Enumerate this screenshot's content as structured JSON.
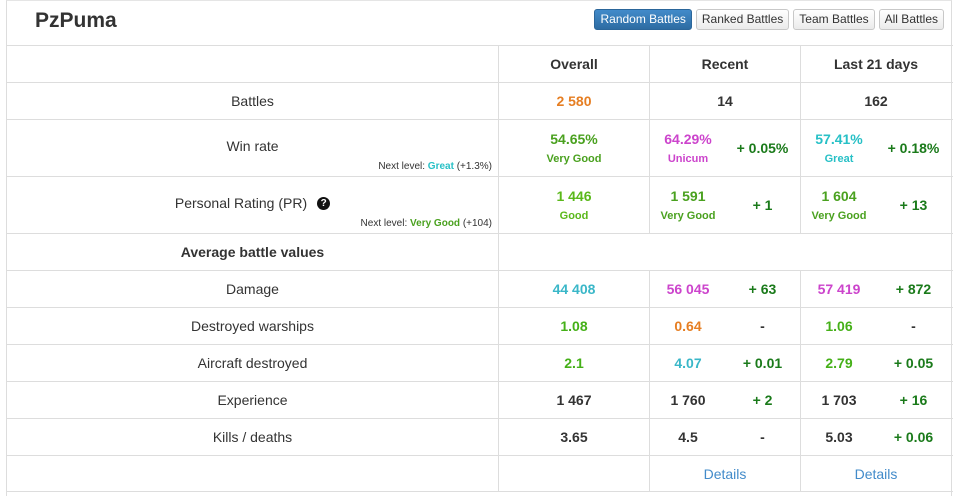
{
  "player": {
    "name": "PzPuma"
  },
  "modes": [
    "Random Battles",
    "Ranked Battles",
    "Team Battles",
    "All Battles"
  ],
  "columns": {
    "overall": "Overall",
    "recent": "Recent",
    "last21": "Last 21 days"
  },
  "battles": {
    "label": "Battles",
    "overall": "2 580",
    "recent": "14",
    "last21": "162"
  },
  "winrate": {
    "label": "Win rate",
    "next_prefix": "Next level:",
    "next_level": "Great",
    "next_delta": "(+1.3%)",
    "overall": "54.65%",
    "overall_tier": "Very Good",
    "recent": "64.29%",
    "recent_tier": "Unicum",
    "recent_delta": "+ 0.05%",
    "last21": "57.41%",
    "last21_tier": "Great",
    "last21_delta": "+ 0.18%"
  },
  "pr": {
    "label": "Personal Rating (PR)",
    "help": "?",
    "next_prefix": "Next level:",
    "next_level": "Very Good",
    "next_delta": "(+104)",
    "overall": "1 446",
    "overall_tier": "Good",
    "recent": "1 591",
    "recent_tier": "Very Good",
    "recent_delta": "+ 1",
    "last21": "1 604",
    "last21_tier": "Very Good",
    "last21_delta": "+ 13"
  },
  "section": {
    "title": "Average battle values"
  },
  "stats": [
    {
      "label": "Damage",
      "overall": "44 408",
      "recent": "56 045",
      "recent_delta": "+ 63",
      "last21": "57 419",
      "last21_delta": "+ 872"
    },
    {
      "label": "Destroyed warships",
      "overall": "1.08",
      "recent": "0.64",
      "recent_delta": "-",
      "last21": "1.06",
      "last21_delta": "-"
    },
    {
      "label": "Aircraft destroyed",
      "overall": "2.1",
      "recent": "4.07",
      "recent_delta": "+ 0.01",
      "last21": "2.79",
      "last21_delta": "+ 0.05"
    },
    {
      "label": "Experience",
      "overall": "1 467",
      "recent": "1 760",
      "recent_delta": "+ 2",
      "last21": "1 703",
      "last21_delta": "+ 16"
    },
    {
      "label": "Kills / deaths",
      "overall": "3.65",
      "recent": "4.5",
      "recent_delta": "-",
      "last21": "5.03",
      "last21_delta": "+ 0.06"
    }
  ],
  "links": {
    "details": "Details"
  },
  "colors": {
    "accent": "#428bca",
    "good_orange": "#e67e22",
    "very_good": "#4aa11f",
    "great": "#27c0c6",
    "unicum": "#cc44cc",
    "delta_positive": "#1a7a1a"
  }
}
